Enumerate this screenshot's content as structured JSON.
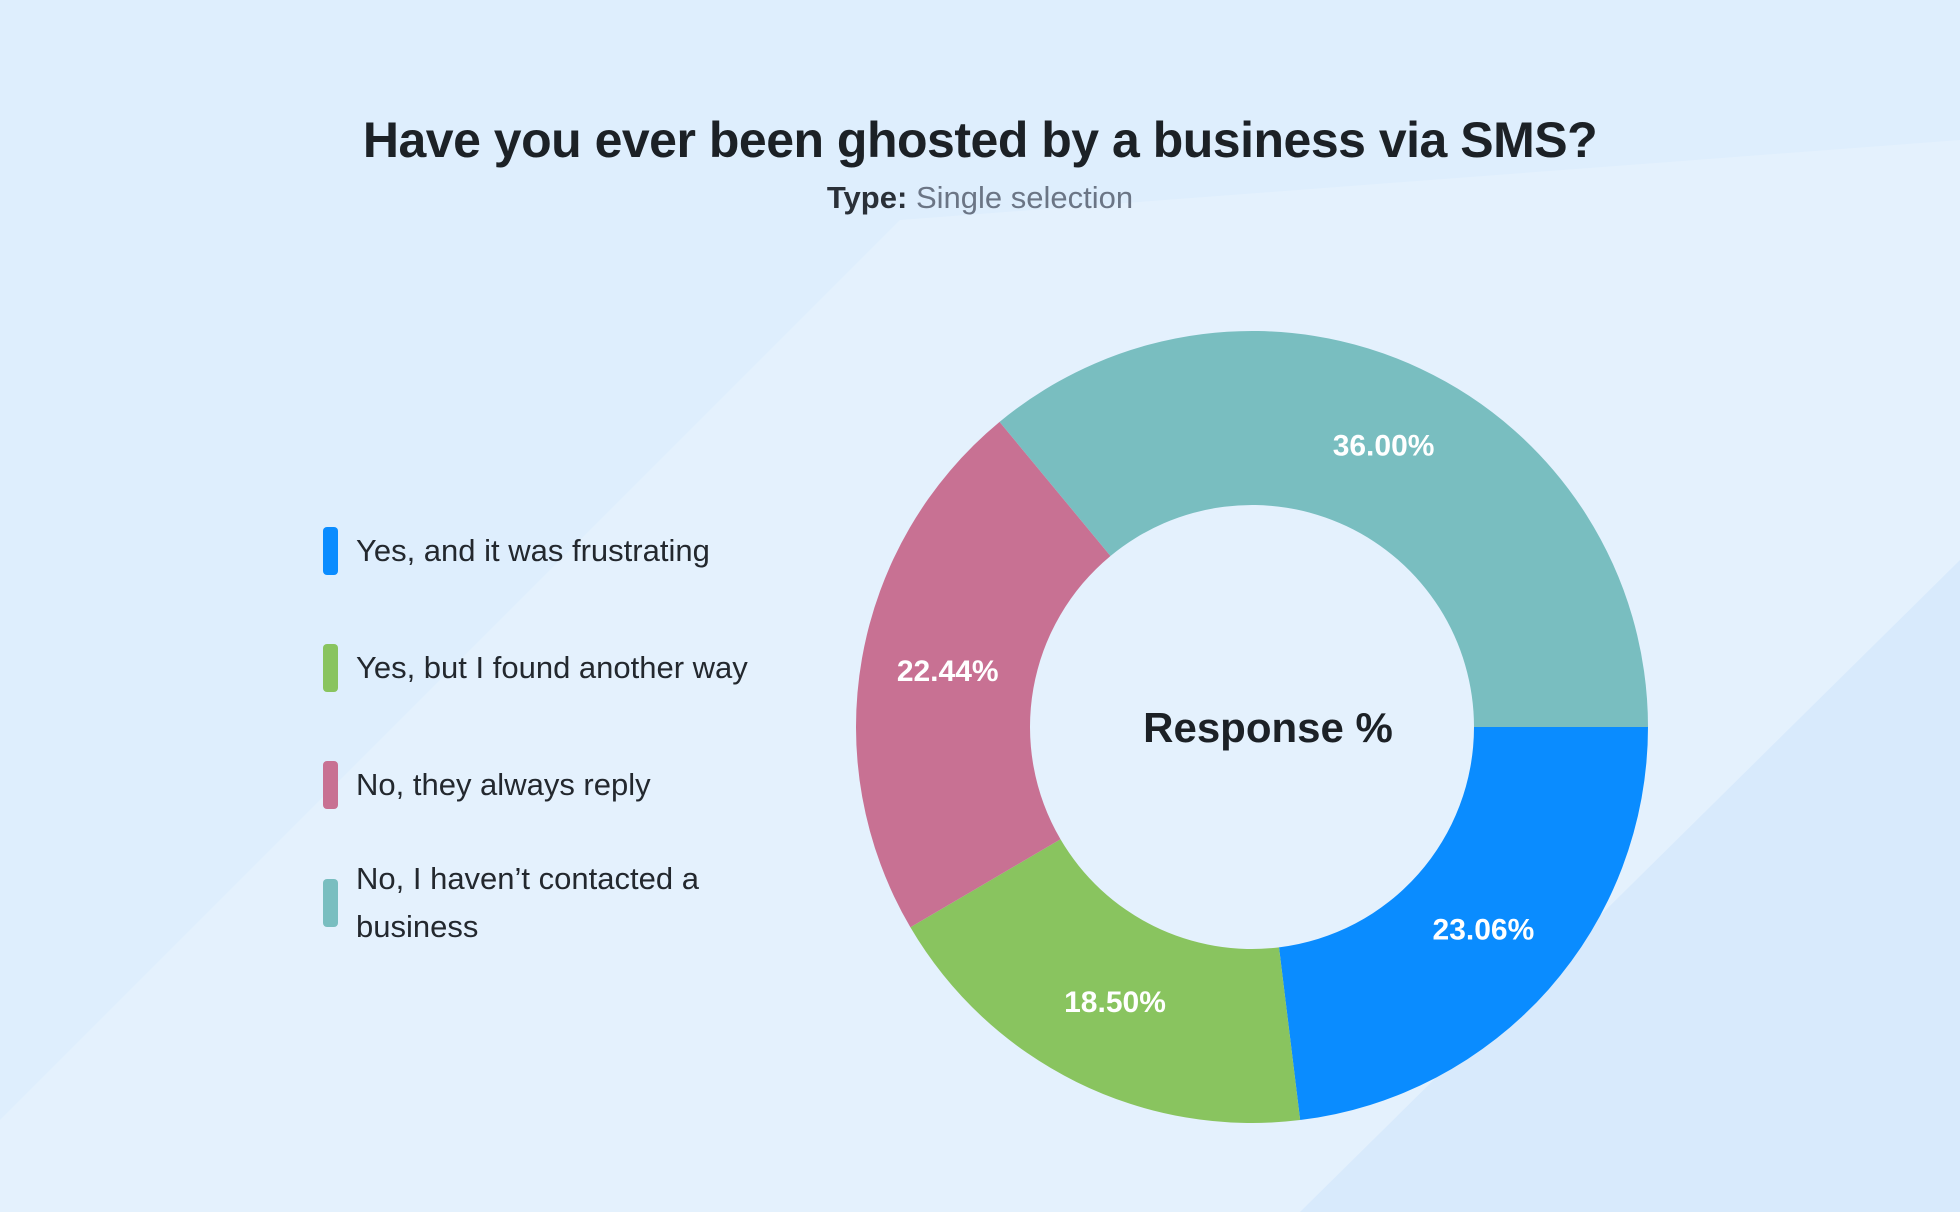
{
  "chart_data": {
    "type": "pie",
    "title": "Have you ever been ghosted by a business via SMS?",
    "subtitle_label": "Type:",
    "subtitle_value": "Single selection",
    "center_label": "Response %",
    "categories": [
      "Yes, and it was frustrating",
      "Yes, but I found another way",
      "No, they always reply",
      "No, I haven’t contacted a business"
    ],
    "values": [
      23.06,
      18.5,
      22.44,
      36.0
    ],
    "value_labels": [
      "23.06%",
      "18.50%",
      "22.44%",
      "36.00%"
    ],
    "colors": [
      "#0a8cff",
      "#89c45f",
      "#c87193",
      "#79bec0"
    ],
    "legend_position": "left"
  }
}
